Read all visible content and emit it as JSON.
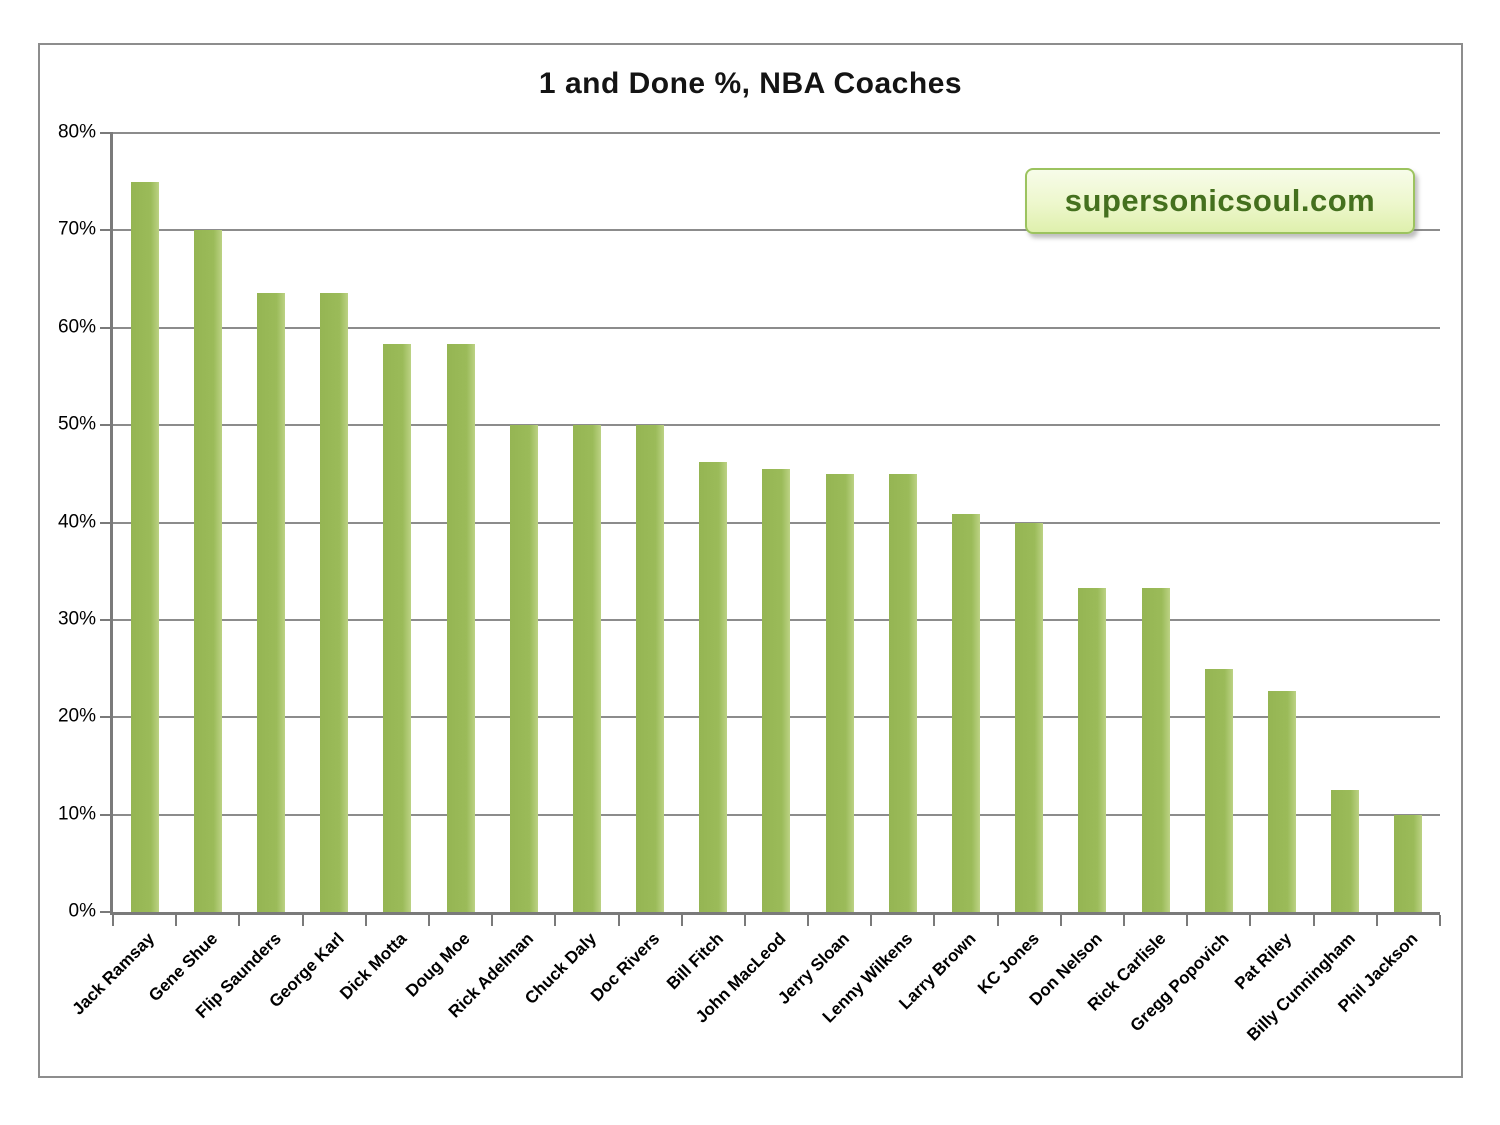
{
  "page": {
    "background": "#ffffff"
  },
  "watermark": {
    "text": "supersonicsoul.com",
    "text_color": "#44701e",
    "border_color": "#9cc35f",
    "bg_top": "#f7fce9",
    "bg_bottom": "#dff0ad"
  },
  "chart_data": {
    "type": "bar",
    "title": "1 and Done %, NBA Coaches",
    "categories": [
      "Jack Ramsay",
      "Gene Shue",
      "Flip Saunders",
      "George Karl",
      "Dick Motta",
      "Doug Moe",
      "Rick Adelman",
      "Chuck Daly",
      "Doc Rivers",
      "Bill Fitch",
      "John MacLeod",
      "Jerry Sloan",
      "Lenny Wilkens",
      "Larry Brown",
      "KC Jones",
      "Don Nelson",
      "Rick Carlisle",
      "Gregg Popovich",
      "Pat Riley",
      "Billy Cunningham",
      "Phil Jackson"
    ],
    "values": [
      75,
      70,
      63.6,
      63.6,
      58.3,
      58.3,
      50,
      50,
      50,
      46.2,
      45.5,
      45,
      45,
      40.9,
      40,
      33.3,
      33.3,
      25,
      22.7,
      12.5,
      10
    ],
    "unit": "%",
    "xlabel": "",
    "ylabel": "",
    "ylim": [
      0,
      80
    ],
    "ytick_step": 10,
    "ytick_labels": [
      "0%",
      "10%",
      "20%",
      "30%",
      "40%",
      "50%",
      "60%",
      "70%",
      "80%"
    ],
    "grid": true,
    "legend": false,
    "bar_color": "#9bbb59",
    "gridline_color": "#8c8c8c",
    "axis_color": "#7a7a7a"
  }
}
